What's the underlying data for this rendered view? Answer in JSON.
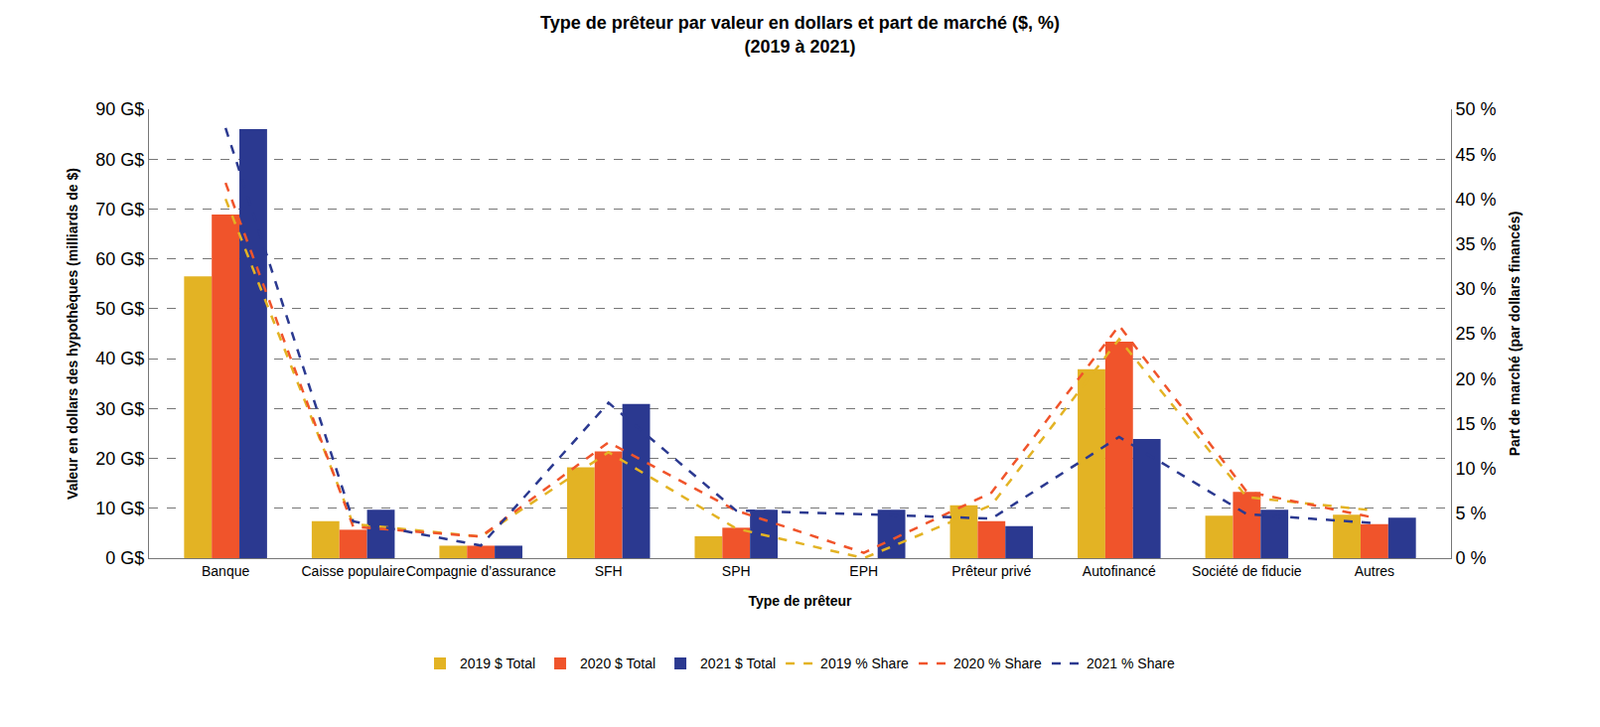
{
  "chart_data": {
    "type": "bar",
    "title": "Type de prêteur par valeur en dollars et part de marché ($, %)",
    "subtitle": "(2019 à 2021)",
    "x_label": "Type de prêteur",
    "y_label": "Valeur en dollars des hypothèques (milliards de $)",
    "y2_label": "Part de marché (par dollars financés)",
    "categories": [
      "Banque",
      "Caisse populaire",
      "Compagnie d’assurance",
      "SFH",
      "SPH",
      "EPH",
      "Prêteur privé",
      "Autofinancé",
      "Société de fiducie",
      "Autres"
    ],
    "series": [
      {
        "name": "2019 $ Total",
        "type": "bar",
        "color": "#E3B324",
        "values": [
          56.5,
          7.4,
          2.5,
          18.2,
          4.4,
          0,
          10.6,
          37.9,
          8.5,
          8.7
        ]
      },
      {
        "name": "2020 $ Total",
        "type": "bar",
        "color": "#F0542B",
        "values": [
          68.9,
          5.7,
          2.5,
          21.4,
          6.1,
          0,
          7.4,
          43.4,
          13.3,
          6.8
        ]
      },
      {
        "name": "2021 $ Total",
        "type": "bar",
        "color": "#2B3990",
        "values": [
          86.0,
          9.7,
          2.5,
          30.9,
          9.7,
          9.7,
          6.4,
          23.9,
          9.7,
          8.1
        ]
      },
      {
        "name": "2019 % Share",
        "type": "line",
        "axis": "y2",
        "line_style": "dashed",
        "color": "#E3B324",
        "values": [
          40.0,
          3.8,
          2.4,
          11.8,
          3.3,
          0,
          5.9,
          24.4,
          6.8,
          5.3
        ]
      },
      {
        "name": "2020 % Share",
        "type": "line",
        "axis": "y2",
        "line_style": "dashed",
        "color": "#F0542B",
        "values": [
          41.8,
          3.5,
          2.4,
          12.9,
          5.3,
          0.6,
          7.3,
          25.9,
          7.4,
          4.5
        ]
      },
      {
        "name": "2021 % Share",
        "type": "line",
        "axis": "y2",
        "line_style": "dashed",
        "color": "#2B3990",
        "values": [
          47.9,
          4.1,
          1.4,
          17.3,
          5.3,
          4.9,
          4.4,
          13.5,
          4.9,
          3.9
        ]
      }
    ],
    "ylim": [
      0,
      90
    ],
    "yticks": [
      {
        "value": 0,
        "label": "0 G$"
      },
      {
        "value": 10,
        "label": "10 G$"
      },
      {
        "value": 20,
        "label": "20 G$"
      },
      {
        "value": 30,
        "label": "30 G$"
      },
      {
        "value": 40,
        "label": "40 G$"
      },
      {
        "value": 50,
        "label": "50 G$"
      },
      {
        "value": 60,
        "label": "60 G$"
      },
      {
        "value": 70,
        "label": "70 G$"
      },
      {
        "value": 80,
        "label": "80 G$"
      },
      {
        "value": 90,
        "label": "90 G$"
      }
    ],
    "y2lim": [
      0,
      50
    ],
    "y2ticks": [
      {
        "value": 0,
        "label": "0 %"
      },
      {
        "value": 5,
        "label": "5 %"
      },
      {
        "value": 10,
        "label": "10 %"
      },
      {
        "value": 15,
        "label": "15 %"
      },
      {
        "value": 20,
        "label": "20 %"
      },
      {
        "value": 25,
        "label": "25 %"
      },
      {
        "value": 30,
        "label": "30 %"
      },
      {
        "value": 35,
        "label": "35 %"
      },
      {
        "value": 40,
        "label": "40 %"
      },
      {
        "value": 45,
        "label": "45 %"
      },
      {
        "value": 50,
        "label": "50 %"
      }
    ],
    "grid": true,
    "legend": "bottom"
  }
}
